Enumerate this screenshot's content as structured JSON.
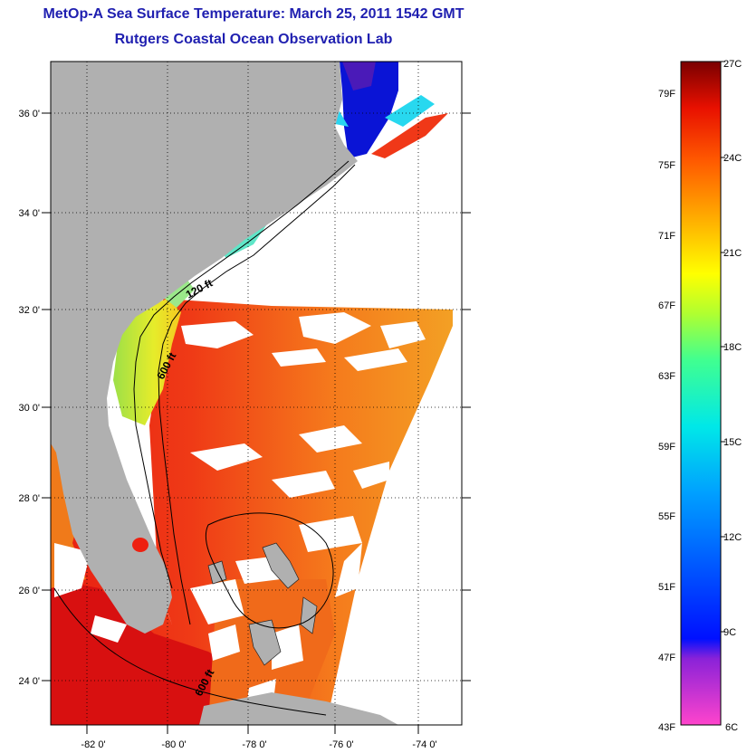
{
  "header": {
    "title": "MetOp-A Sea Surface Temperature:  March 25, 2011 1542 GMT",
    "subtitle": "Rutgers Coastal Ocean Observation Lab"
  },
  "map": {
    "lat_labels": [
      "36 0'",
      "34 0'",
      "32 0'",
      "30 0'",
      "28 0'",
      "26 0'",
      "24 0'"
    ],
    "lon_labels": [
      "-82 0'",
      "-80 0'",
      "-78 0'",
      "-76 0'",
      "-74 0'"
    ],
    "contour_labels": [
      "120 ft",
      "600 ft",
      "600 ft"
    ],
    "colors": {
      "land": "#b0b0b0",
      "warm": "#e8281a",
      "mid": "#f08a1c",
      "cool": "#00e5ff",
      "cold": "#0a14d6"
    }
  },
  "colorbar": {
    "fahrenheit_labels": [
      "79F",
      "75F",
      "71F",
      "67F",
      "63F",
      "59F",
      "55F",
      "51F",
      "47F",
      "43F"
    ],
    "celsius_labels": [
      "27C",
      "24C",
      "21C",
      "18C",
      "15C",
      "12C",
      "9C",
      "6C"
    ]
  }
}
